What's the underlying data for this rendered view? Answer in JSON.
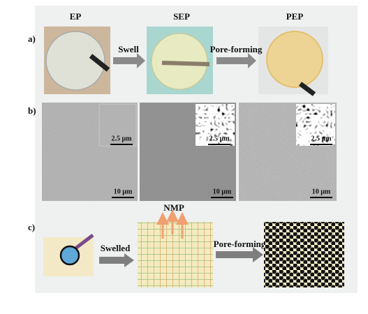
{
  "panel_a": {
    "label": "a)",
    "titles": [
      "EP",
      "SEP",
      "PEP"
    ],
    "arrows": [
      "Swell",
      "Pore-forming"
    ]
  },
  "panel_b": {
    "label": "b)",
    "inset_scale": [
      "2.5 µm",
      "2.5 µm",
      "2.5 µm"
    ],
    "scale": [
      "10 µm",
      "10 µm",
      "10 µm"
    ]
  },
  "panel_c": {
    "label": "c)",
    "solvent": "NMP",
    "arrows": [
      "Swelled",
      "Pore-forming"
    ]
  }
}
